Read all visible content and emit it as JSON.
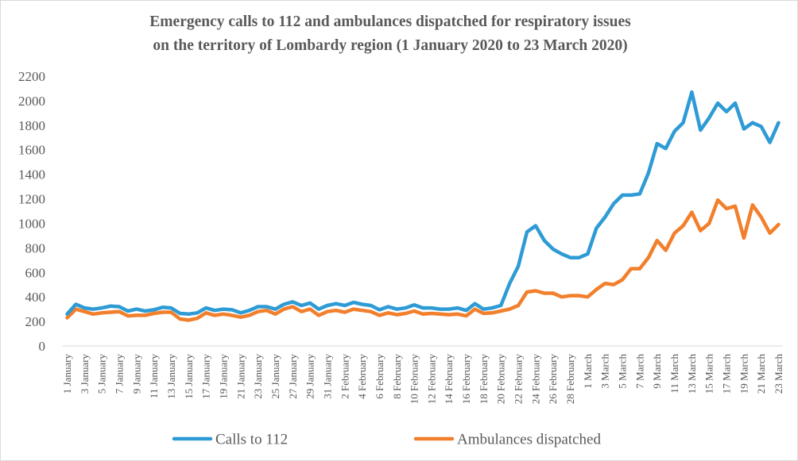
{
  "chart_data": {
    "type": "line",
    "title": "Emergency calls to 112 and ambulances dispatched for respiratory issues on the territory of  Lombardy region (1 January 2020 to 23 March 2020)",
    "title_lines": [
      "Emergency calls to 112 and ambulances dispatched for respiratory issues",
      "on the territory of  Lombardy region (1 January 2020 to 23 March 2020)"
    ],
    "xlabel": "",
    "ylabel": "",
    "ylim": [
      0,
      2200
    ],
    "yticks": [
      0,
      200,
      400,
      600,
      800,
      1000,
      1200,
      1400,
      1600,
      1800,
      2000,
      2200
    ],
    "grid": false,
    "legend_position": "bottom",
    "x_tick_labels": [
      "1 January",
      "3 January",
      "5 January",
      "7 January",
      "9 January",
      "11 January",
      "13 January",
      "15 January",
      "17 January",
      "19 January",
      "21 January",
      "23 January",
      "25 January",
      "27 January",
      "29 January",
      "31 January",
      "2 February",
      "4 February",
      "6 February",
      "8 February",
      "10 February",
      "12 February",
      "14 February",
      "16 February",
      "18 February",
      "20 February",
      "22 February",
      "24 February",
      "26 February",
      "28 February",
      "1 March",
      "3 March",
      "5 March",
      "7 March",
      "9 March",
      "11 March",
      "13 March",
      "15 March",
      "17 March",
      "19 March",
      "21 March",
      "23 March"
    ],
    "x_count": 83,
    "series": [
      {
        "name": "Calls to 112",
        "color": "#2E9BD5",
        "values": [
          260,
          340,
          310,
          300,
          310,
          325,
          320,
          285,
          300,
          285,
          295,
          315,
          310,
          265,
          260,
          270,
          310,
          290,
          300,
          295,
          270,
          290,
          320,
          320,
          300,
          340,
          360,
          330,
          350,
          300,
          330,
          345,
          330,
          355,
          340,
          330,
          295,
          320,
          300,
          310,
          335,
          310,
          310,
          300,
          300,
          310,
          290,
          345,
          300,
          310,
          330,
          510,
          650,
          930,
          980,
          860,
          790,
          750,
          720,
          720,
          750,
          960,
          1050,
          1160,
          1230,
          1230,
          1240,
          1410,
          1650,
          1610,
          1750,
          1820,
          2070,
          1760,
          1860,
          1980,
          1910,
          1980,
          1770,
          1820,
          1790,
          1660,
          1820
        ]
      },
      {
        "name": "Ambulances dispatched",
        "color": "#F27F2C",
        "values": [
          230,
          300,
          280,
          260,
          270,
          275,
          280,
          245,
          250,
          250,
          265,
          275,
          275,
          220,
          210,
          225,
          270,
          250,
          260,
          250,
          235,
          250,
          280,
          290,
          260,
          300,
          320,
          280,
          300,
          250,
          280,
          290,
          275,
          300,
          290,
          280,
          250,
          270,
          255,
          265,
          285,
          260,
          265,
          260,
          255,
          260,
          245,
          300,
          265,
          270,
          285,
          300,
          330,
          440,
          450,
          430,
          430,
          400,
          410,
          410,
          400,
          460,
          510,
          500,
          540,
          630,
          630,
          720,
          860,
          780,
          920,
          980,
          1090,
          940,
          1000,
          1190,
          1120,
          1140,
          880,
          1150,
          1050,
          920,
          990
        ]
      }
    ]
  }
}
